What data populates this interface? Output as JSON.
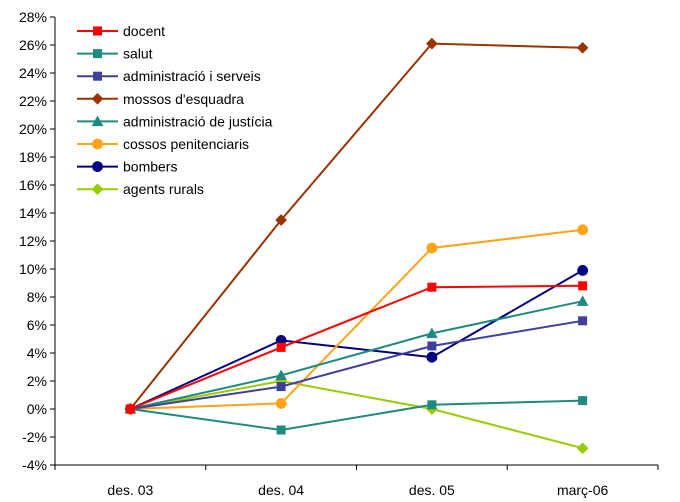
{
  "chart_data": {
    "type": "line",
    "categories": [
      "des. 03",
      "des. 04",
      "des. 05",
      "març-06"
    ],
    "y_unit": "%",
    "ylim": [
      -4,
      28
    ],
    "y_ticks": [
      -4,
      -2,
      0,
      2,
      4,
      6,
      8,
      10,
      12,
      14,
      16,
      18,
      20,
      22,
      24,
      26,
      28
    ],
    "y_tick_labels": [
      "-4%",
      "-2%",
      "0%",
      "2%",
      "4%",
      "6%",
      "8%",
      "10%",
      "12%",
      "14%",
      "16%",
      "18%",
      "20%",
      "22%",
      "24%",
      "26%",
      "28%"
    ],
    "grid": false,
    "legend_position": "top-left",
    "series": [
      {
        "name": "docent",
        "color": "#ff0000",
        "marker": "square",
        "values": [
          0,
          4.4,
          8.7,
          8.8
        ]
      },
      {
        "name": "salut",
        "color": "#1f8a80",
        "marker": "square",
        "values": [
          0,
          -1.5,
          0.3,
          0.6
        ]
      },
      {
        "name": "administració i serveis",
        "color": "#403f9c",
        "marker": "square",
        "values": [
          0,
          1.6,
          4.5,
          6.3
        ]
      },
      {
        "name": "mossos d'esquadra",
        "color": "#993300",
        "marker": "diamond",
        "values": [
          0,
          13.5,
          26.1,
          25.8
        ]
      },
      {
        "name": "administració de justícia",
        "color": "#1f8a80",
        "marker": "triangle",
        "values": [
          0,
          2.4,
          5.4,
          7.7
        ]
      },
      {
        "name": "cossos penitenciaris",
        "color": "#ffa31a",
        "marker": "circle",
        "values": [
          0,
          0.4,
          11.5,
          12.8
        ]
      },
      {
        "name": "bombers",
        "color": "#000080",
        "marker": "circle",
        "values": [
          0,
          4.9,
          3.7,
          9.9
        ]
      },
      {
        "name": "agents rurals",
        "color": "#99cc00",
        "marker": "diamond",
        "values": [
          0,
          2.0,
          0.0,
          -2.8
        ]
      }
    ]
  }
}
